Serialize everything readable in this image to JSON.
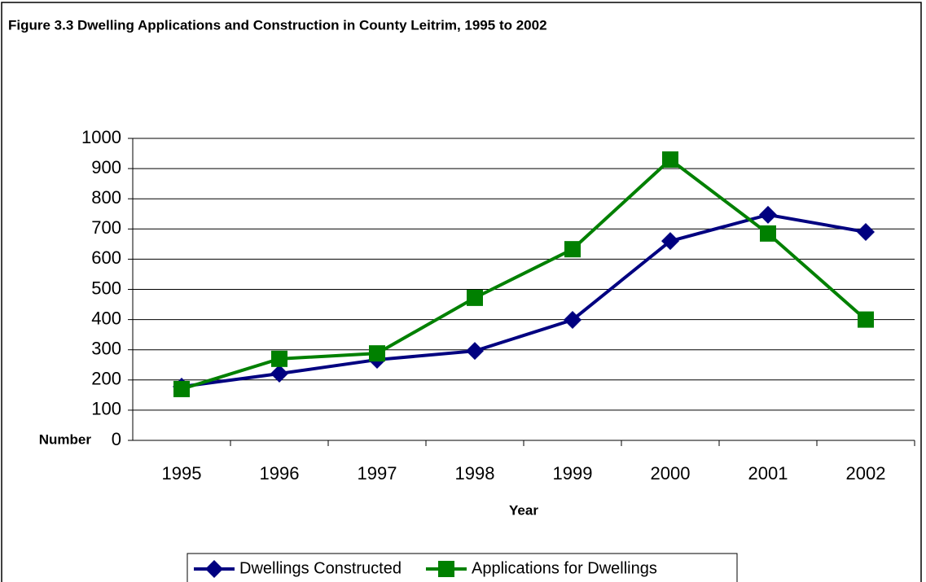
{
  "chart_data": {
    "type": "line",
    "title": "Figure 3.3 Dwelling Applications and Construction in County Leitrim, 1995 to 2002",
    "xlabel": "Year",
    "ylabel": "Number",
    "categories": [
      "1995",
      "1996",
      "1997",
      "1998",
      "1999",
      "2000",
      "2001",
      "2002"
    ],
    "series": [
      {
        "name": "Dwellings Constructed",
        "color": "#000080",
        "marker": "diamond",
        "values": [
          178,
          221,
          267,
          296,
          399,
          660,
          747,
          690
        ]
      },
      {
        "name": "Applications for Dwellings",
        "color": "#008000",
        "marker": "square",
        "values": [
          170,
          270,
          288,
          472,
          633,
          930,
          685,
          400
        ]
      }
    ],
    "ylim": [
      0,
      1000
    ],
    "yticks": [
      0,
      100,
      200,
      300,
      400,
      500,
      600,
      700,
      800,
      900,
      1000
    ],
    "grid": true,
    "legend": "bottom"
  }
}
